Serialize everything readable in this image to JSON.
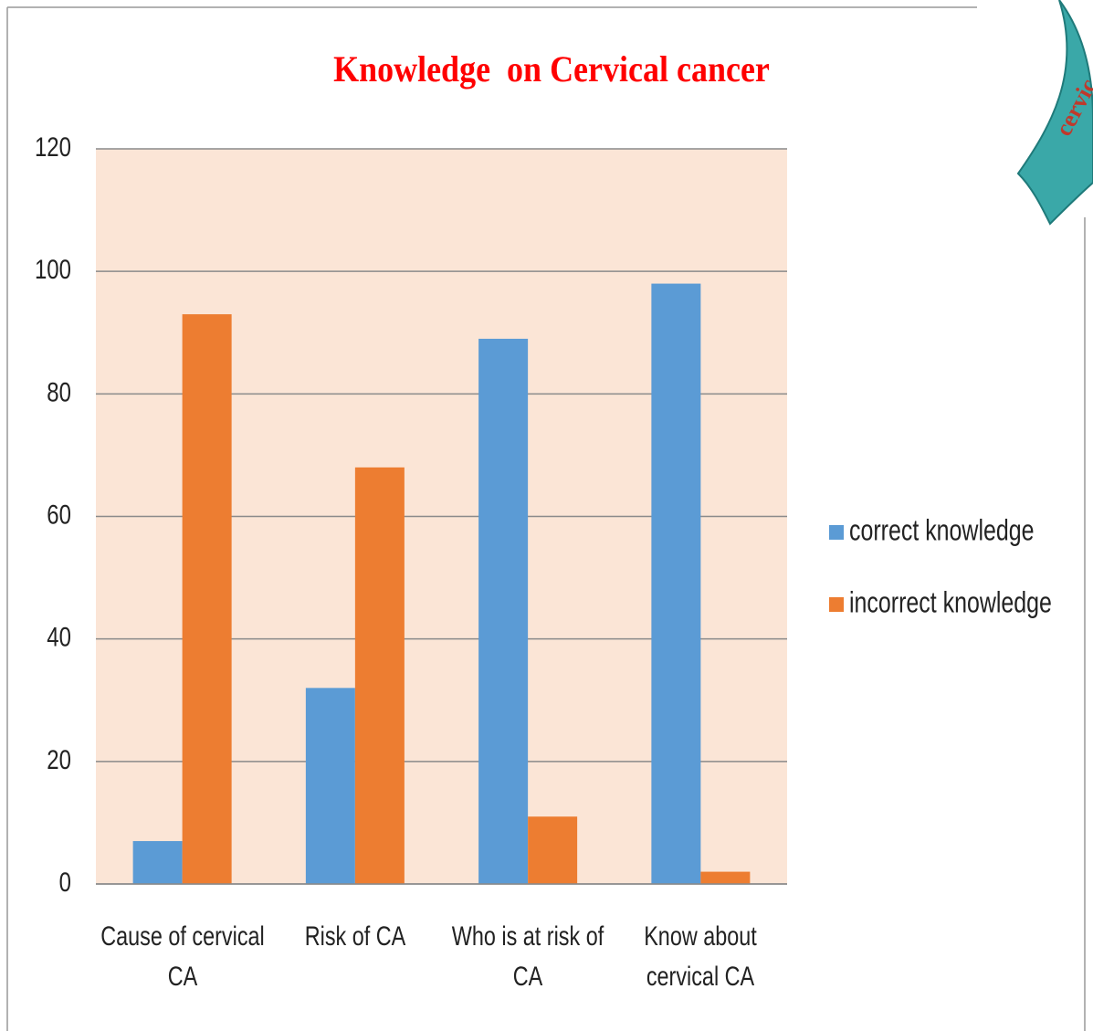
{
  "chart_data": {
    "type": "bar",
    "title": "Knowledge  on Cervical cancer",
    "decoration_text": "cervic",
    "categories": [
      "Cause of cervical CA",
      "Risk of CA",
      "Who is at risk of CA",
      "Know about cervical CA"
    ],
    "series": [
      {
        "name": "correct knowledge",
        "color": "#5b9bd5",
        "values": [
          7,
          32,
          89,
          98
        ]
      },
      {
        "name": "incorrect knowledge",
        "color": "#ed7d31",
        "values": [
          93,
          68,
          11,
          2
        ]
      }
    ],
    "ylim": [
      0,
      120
    ],
    "yticks": [
      0,
      20,
      40,
      60,
      80,
      100,
      120
    ],
    "grid": true,
    "legend": "right"
  }
}
